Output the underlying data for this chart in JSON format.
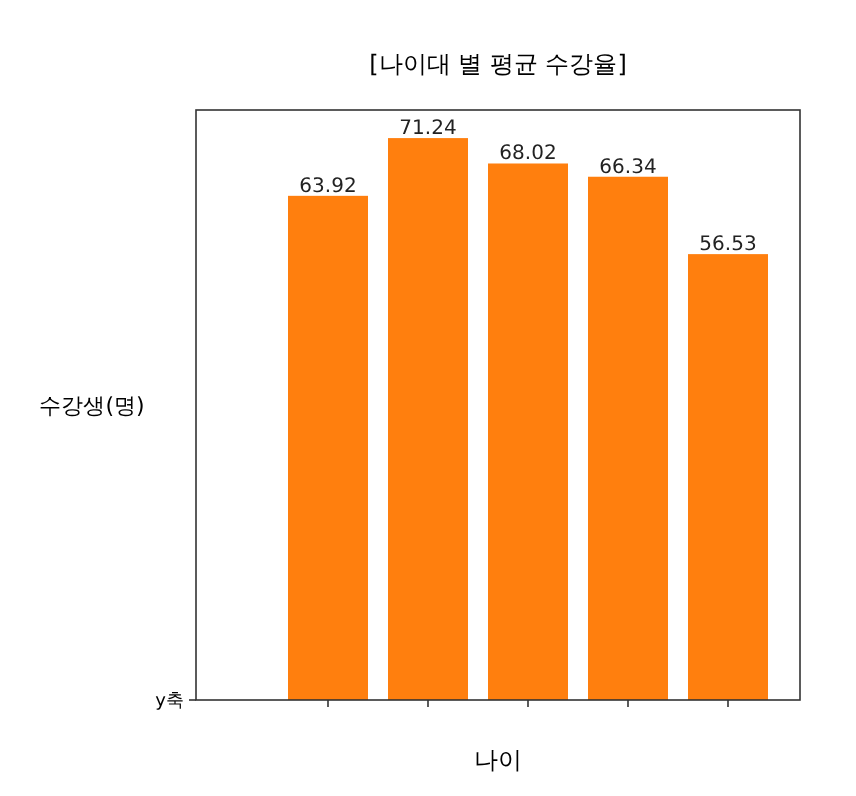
{
  "chart_data": {
    "type": "bar",
    "title": "[나이대 별 평균 수강율]",
    "xlabel": "나이",
    "ylabel": "수강생(명)",
    "categories": [
      null,
      null,
      null,
      null,
      null
    ],
    "values": [
      63.92,
      71.24,
      68.02,
      66.34,
      56.53
    ],
    "color": "#ff7f0e",
    "data_labels": true,
    "annotations": [
      "y축"
    ]
  }
}
